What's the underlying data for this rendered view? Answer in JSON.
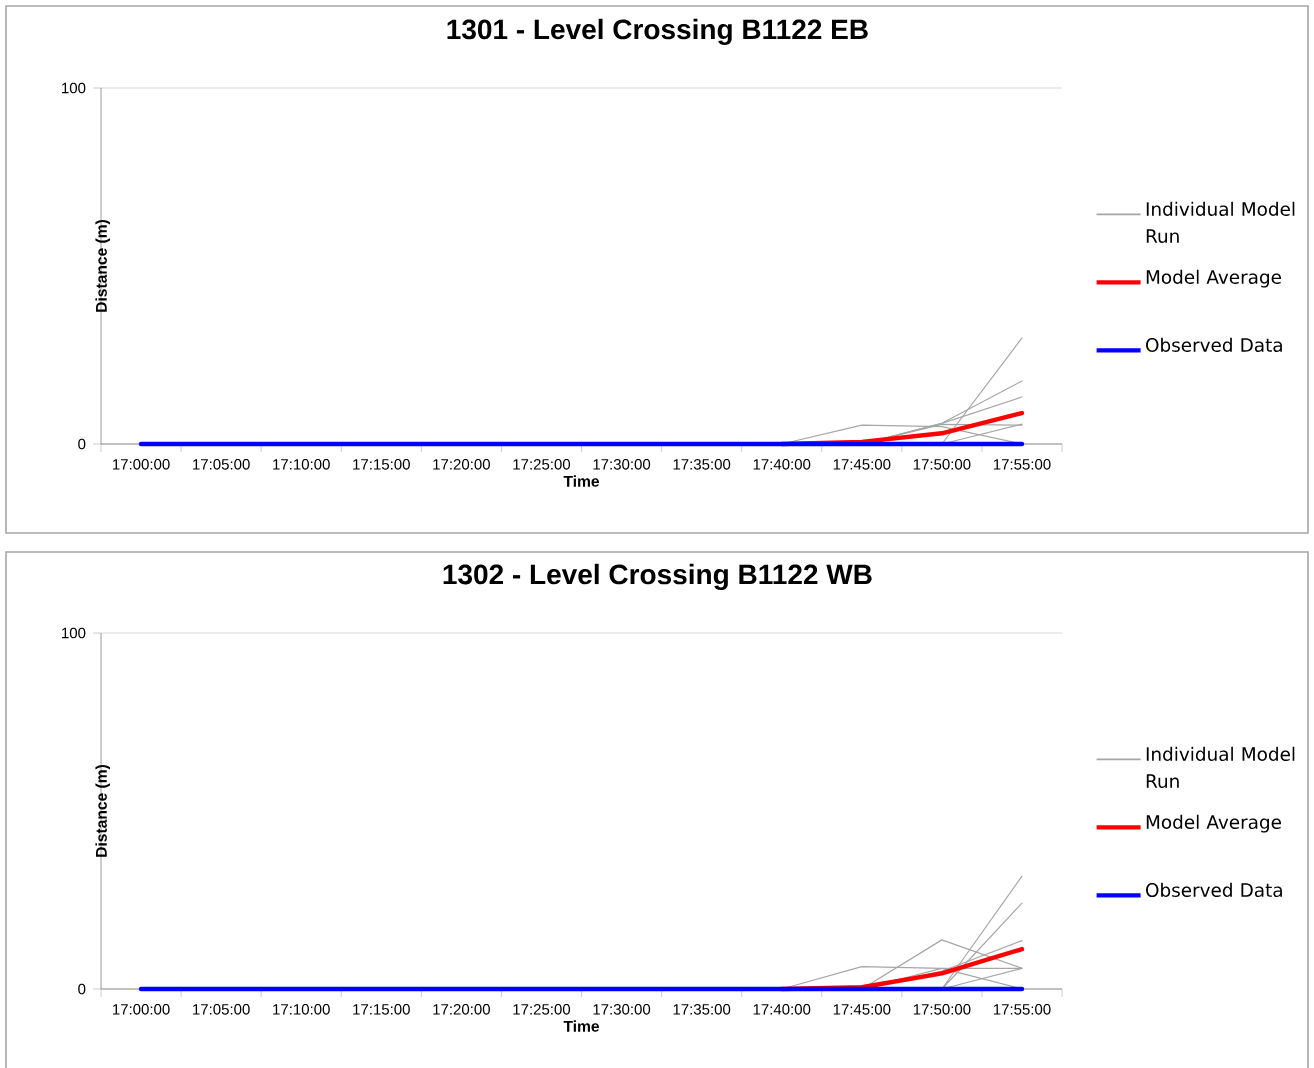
{
  "chart_data": [
    {
      "type": "line",
      "title": "1301 - Level Crossing B1122 EB",
      "xlabel": "Time",
      "ylabel": "Distance (m)",
      "categories": [
        "17:00:00",
        "17:05:00",
        "17:10:00",
        "17:15:00",
        "17:20:00",
        "17:25:00",
        "17:30:00",
        "17:35:00",
        "17:40:00",
        "17:45:00",
        "17:50:00",
        "17:55:00"
      ],
      "ylim": [
        0,
        100
      ],
      "yticks": [
        0,
        100
      ],
      "grid": "y",
      "legend": "right",
      "marker": "none",
      "line_style": "solid",
      "series": [
        {
          "name": "Individual Model Run",
          "color": "#a6a6a6",
          "values": [
            null,
            null,
            null,
            null,
            null,
            null,
            null,
            null,
            0,
            5.3,
            4.9,
            0
          ]
        },
        {
          "color": "#a6a6a6",
          "values": [
            null,
            null,
            null,
            null,
            null,
            null,
            null,
            null,
            null,
            0,
            5.8,
            17.7
          ]
        },
        {
          "color": "#a6a6a6",
          "values": [
            null,
            null,
            null,
            null,
            null,
            null,
            null,
            null,
            null,
            0,
            5.8,
            13.2
          ]
        },
        {
          "color": "#a6a6a6",
          "values": [
            null,
            null,
            null,
            null,
            null,
            null,
            null,
            null,
            null,
            null,
            0,
            29.8
          ]
        },
        {
          "color": "#a6a6a6",
          "values": [
            null,
            null,
            null,
            null,
            null,
            null,
            null,
            null,
            null,
            null,
            0,
            5.6
          ]
        },
        {
          "color": "#a6a6a6",
          "values": [
            null,
            null,
            null,
            null,
            null,
            null,
            null,
            null,
            null,
            0,
            5.5,
            5.3
          ]
        },
        {
          "name": "Model Average",
          "color": "#ff0000",
          "values": [
            null,
            null,
            null,
            null,
            null,
            null,
            null,
            null,
            0,
            0.6,
            3.0,
            8.7
          ]
        },
        {
          "name": "Observed Data",
          "color": "#0000ff",
          "values": [
            0,
            0,
            0,
            0,
            0,
            0,
            0,
            0,
            0,
            0,
            0,
            0
          ]
        }
      ]
    },
    {
      "type": "line",
      "title": "1302 - Level Crossing B1122 WB",
      "xlabel": "Time",
      "ylabel": "Distance (m)",
      "categories": [
        "17:00:00",
        "17:05:00",
        "17:10:00",
        "17:15:00",
        "17:20:00",
        "17:25:00",
        "17:30:00",
        "17:35:00",
        "17:40:00",
        "17:45:00",
        "17:50:00",
        "17:55:00"
      ],
      "ylim": [
        0,
        100
      ],
      "yticks": [
        0,
        100
      ],
      "grid": "y",
      "legend": "right",
      "marker": "none",
      "line_style": "solid",
      "series": [
        {
          "name": "Individual Model Run",
          "color": "#a6a6a6",
          "values": [
            null,
            null,
            null,
            null,
            null,
            null,
            null,
            null,
            0,
            6.3,
            5.8,
            5.8
          ]
        },
        {
          "color": "#a6a6a6",
          "values": [
            null,
            null,
            null,
            null,
            null,
            null,
            null,
            null,
            null,
            0,
            13.8,
            5.8
          ]
        },
        {
          "color": "#a6a6a6",
          "values": [
            null,
            null,
            null,
            null,
            null,
            null,
            null,
            null,
            null,
            0,
            5.8,
            0
          ]
        },
        {
          "color": "#a6a6a6",
          "values": [
            null,
            null,
            null,
            null,
            null,
            null,
            null,
            null,
            null,
            null,
            0,
            31.7
          ]
        },
        {
          "color": "#a6a6a6",
          "values": [
            null,
            null,
            null,
            null,
            null,
            null,
            null,
            null,
            null,
            null,
            0,
            24.1
          ]
        },
        {
          "color": "#a6a6a6",
          "values": [
            null,
            null,
            null,
            null,
            null,
            null,
            null,
            null,
            null,
            0,
            5.0,
            13.6
          ]
        },
        {
          "color": "#a6a6a6",
          "values": [
            null,
            null,
            null,
            null,
            null,
            null,
            null,
            null,
            null,
            null,
            0,
            5.8
          ]
        },
        {
          "name": "Model Average",
          "color": "#ff0000",
          "values": [
            null,
            null,
            null,
            null,
            null,
            null,
            null,
            null,
            0,
            0.5,
            4.4,
            11.2
          ]
        },
        {
          "name": "Observed Data",
          "color": "#0000ff",
          "values": [
            0,
            0,
            0,
            0,
            0,
            0,
            0,
            0,
            0,
            0,
            0,
            0
          ]
        }
      ]
    }
  ]
}
